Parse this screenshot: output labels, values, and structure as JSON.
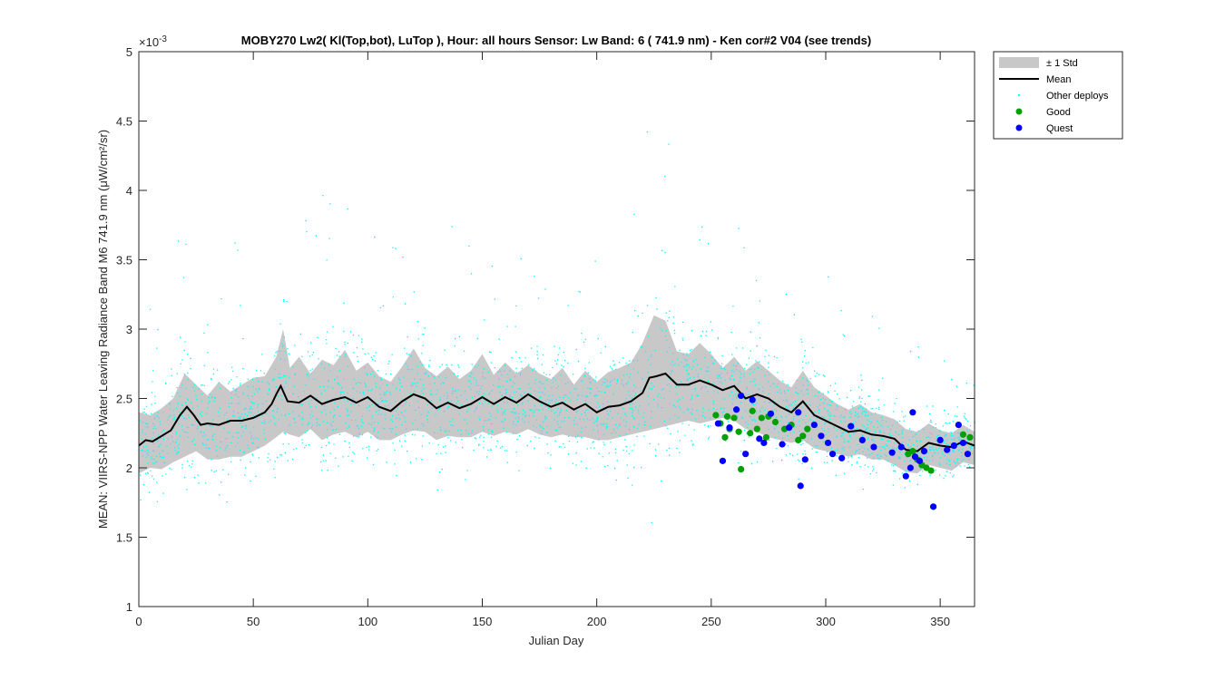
{
  "chart_data": {
    "type": "scatter",
    "title": "MOBY270   Lw2( Kl(Top,bot), LuTop ),   Hour: all hours  Sensor: Lw Band: 6 ( 741.9 nm)  - Ken cor#2 V04 (see trends)",
    "xlabel": "Julian Day",
    "ylabel": "MEAN: VIIRS-NPP Water Leaving Radiance Band M6 741.9 nm (μW/cm²/sr)",
    "y_exponent_label": "×10",
    "y_exponent": "-3",
    "xlim": [
      0,
      365
    ],
    "ylim": [
      1,
      5
    ],
    "y_scale_factor": 0.001,
    "x_ticks": [
      0,
      50,
      100,
      150,
      200,
      250,
      300,
      350
    ],
    "x_tick_labels": [
      "0",
      "50",
      "100",
      "150",
      "200",
      "250",
      "300",
      "350"
    ],
    "y_ticks": [
      1,
      1.5,
      2,
      2.5,
      3,
      3.5,
      4,
      4.5,
      5
    ],
    "y_tick_labels": [
      "1",
      "1.5",
      "2",
      "2.5",
      "3",
      "3.5",
      "4",
      "4.5",
      "5"
    ],
    "grid": false,
    "legend_position": "outside-top-right",
    "legend": [
      {
        "label": "± 1 Std",
        "kind": "patch",
        "color": "#c8c8c8"
      },
      {
        "label": "Mean",
        "kind": "line",
        "color": "#000000"
      },
      {
        "label": "Other deploys",
        "kind": "dot",
        "color": "#00ffff"
      },
      {
        "label": "Good",
        "kind": "marker",
        "color": "#00a000"
      },
      {
        "label": "Quest",
        "kind": "marker",
        "color": "#0000ff"
      }
    ],
    "mean_series": {
      "name": "Mean",
      "x": [
        0,
        3,
        6,
        10,
        14,
        18,
        21,
        24,
        27,
        30,
        35,
        40,
        45,
        50,
        55,
        58,
        60,
        62,
        65,
        70,
        75,
        80,
        85,
        90,
        95,
        100,
        105,
        110,
        115,
        120,
        125,
        130,
        135,
        140,
        145,
        150,
        155,
        160,
        165,
        170,
        175,
        180,
        185,
        190,
        195,
        200,
        205,
        210,
        215,
        220,
        223,
        226,
        230,
        235,
        240,
        245,
        250,
        255,
        260,
        265,
        270,
        275,
        280,
        285,
        290,
        295,
        300,
        305,
        310,
        315,
        320,
        325,
        330,
        335,
        340,
        345,
        350,
        355,
        360,
        365
      ],
      "y": [
        2.16,
        2.2,
        2.19,
        2.23,
        2.27,
        2.38,
        2.44,
        2.38,
        2.31,
        2.32,
        2.31,
        2.34,
        2.34,
        2.36,
        2.4,
        2.46,
        2.53,
        2.59,
        2.48,
        2.47,
        2.52,
        2.46,
        2.49,
        2.51,
        2.47,
        2.51,
        2.44,
        2.41,
        2.48,
        2.53,
        2.5,
        2.43,
        2.47,
        2.43,
        2.46,
        2.51,
        2.46,
        2.51,
        2.47,
        2.53,
        2.48,
        2.44,
        2.47,
        2.42,
        2.46,
        2.4,
        2.44,
        2.45,
        2.48,
        2.54,
        2.65,
        2.66,
        2.68,
        2.6,
        2.6,
        2.63,
        2.6,
        2.56,
        2.59,
        2.5,
        2.53,
        2.5,
        2.44,
        2.4,
        2.48,
        2.38,
        2.34,
        2.3,
        2.26,
        2.27,
        2.24,
        2.23,
        2.21,
        2.13,
        2.12,
        2.18,
        2.16,
        2.15,
        2.19,
        2.16
      ]
    },
    "std_band": {
      "name": "± 1 Std",
      "x": [
        0,
        5,
        10,
        15,
        20,
        25,
        30,
        35,
        40,
        45,
        50,
        55,
        60,
        63,
        66,
        70,
        75,
        80,
        85,
        90,
        95,
        100,
        105,
        110,
        115,
        120,
        125,
        130,
        135,
        140,
        145,
        150,
        155,
        160,
        165,
        170,
        175,
        180,
        185,
        190,
        195,
        200,
        205,
        210,
        215,
        220,
        225,
        230,
        235,
        240,
        245,
        250,
        255,
        260,
        265,
        270,
        275,
        280,
        285,
        290,
        295,
        300,
        305,
        310,
        315,
        320,
        325,
        330,
        335,
        340,
        345,
        350,
        355,
        360,
        365
      ],
      "upper": [
        2.4,
        2.38,
        2.43,
        2.5,
        2.68,
        2.6,
        2.52,
        2.62,
        2.55,
        2.6,
        2.65,
        2.66,
        2.8,
        3.0,
        2.72,
        2.8,
        2.68,
        2.78,
        2.74,
        2.85,
        2.7,
        2.76,
        2.66,
        2.62,
        2.73,
        2.86,
        2.72,
        2.66,
        2.73,
        2.64,
        2.7,
        2.82,
        2.67,
        2.76,
        2.68,
        2.74,
        2.68,
        2.64,
        2.72,
        2.6,
        2.7,
        2.62,
        2.69,
        2.72,
        2.76,
        2.9,
        3.1,
        3.06,
        2.84,
        2.82,
        2.9,
        2.82,
        2.72,
        2.8,
        2.7,
        2.77,
        2.7,
        2.63,
        2.58,
        2.7,
        2.58,
        2.52,
        2.46,
        2.42,
        2.46,
        2.4,
        2.38,
        2.35,
        2.28,
        2.26,
        2.32,
        2.27,
        2.25,
        2.31,
        2.26
      ],
      "lower": [
        1.96,
        2.0,
        1.99,
        2.04,
        2.08,
        2.12,
        2.06,
        2.06,
        2.08,
        2.08,
        2.12,
        2.16,
        2.22,
        2.26,
        2.24,
        2.22,
        2.28,
        2.2,
        2.24,
        2.26,
        2.22,
        2.26,
        2.2,
        2.2,
        2.24,
        2.27,
        2.26,
        2.2,
        2.23,
        2.22,
        2.22,
        2.26,
        2.23,
        2.26,
        2.24,
        2.28,
        2.24,
        2.22,
        2.24,
        2.22,
        2.22,
        2.2,
        2.2,
        2.22,
        2.24,
        2.26,
        2.28,
        2.3,
        2.32,
        2.34,
        2.32,
        2.34,
        2.36,
        2.34,
        2.28,
        2.26,
        2.22,
        2.2,
        2.18,
        2.2,
        2.14,
        2.12,
        2.1,
        2.08,
        2.1,
        2.06,
        2.06,
        2.02,
        1.97,
        1.96,
        2.02,
        2.0,
        1.98,
        2.04,
        2.02
      ]
    },
    "good_points": {
      "name": "Good",
      "x": [
        252,
        254,
        256,
        257,
        258,
        260,
        262,
        263,
        267,
        268,
        270,
        272,
        274,
        275,
        278,
        282,
        285,
        288,
        290,
        292,
        336,
        338,
        340,
        342,
        344,
        346,
        360,
        363
      ],
      "y": [
        2.38,
        2.32,
        2.22,
        2.37,
        2.28,
        2.36,
        2.26,
        1.99,
        2.25,
        2.41,
        2.28,
        2.36,
        2.22,
        2.37,
        2.33,
        2.28,
        2.31,
        2.2,
        2.23,
        2.28,
        2.1,
        2.12,
        2.06,
        2.02,
        2.0,
        1.98,
        2.24,
        2.22
      ]
    },
    "quest_points": {
      "name": "Quest",
      "x": [
        253,
        255,
        258,
        261,
        263,
        265,
        268,
        271,
        273,
        276,
        281,
        284,
        288,
        289,
        291,
        295,
        298,
        301,
        303,
        307,
        311,
        316,
        321,
        329,
        333,
        335,
        337,
        338,
        339,
        341,
        343,
        347,
        350,
        353,
        356,
        358,
        360,
        362
      ],
      "y": [
        2.32,
        2.05,
        2.29,
        2.42,
        2.52,
        2.1,
        2.49,
        2.21,
        2.18,
        2.39,
        2.17,
        2.29,
        2.4,
        1.87,
        2.06,
        2.31,
        2.23,
        2.18,
        2.1,
        2.07,
        2.3,
        2.2,
        2.15,
        2.11,
        2.15,
        1.94,
        2.0,
        2.4,
        2.08,
        2.05,
        2.12,
        1.72,
        2.2,
        2.13,
        2.16,
        2.31,
        2.18,
        2.1
      ]
    }
  }
}
